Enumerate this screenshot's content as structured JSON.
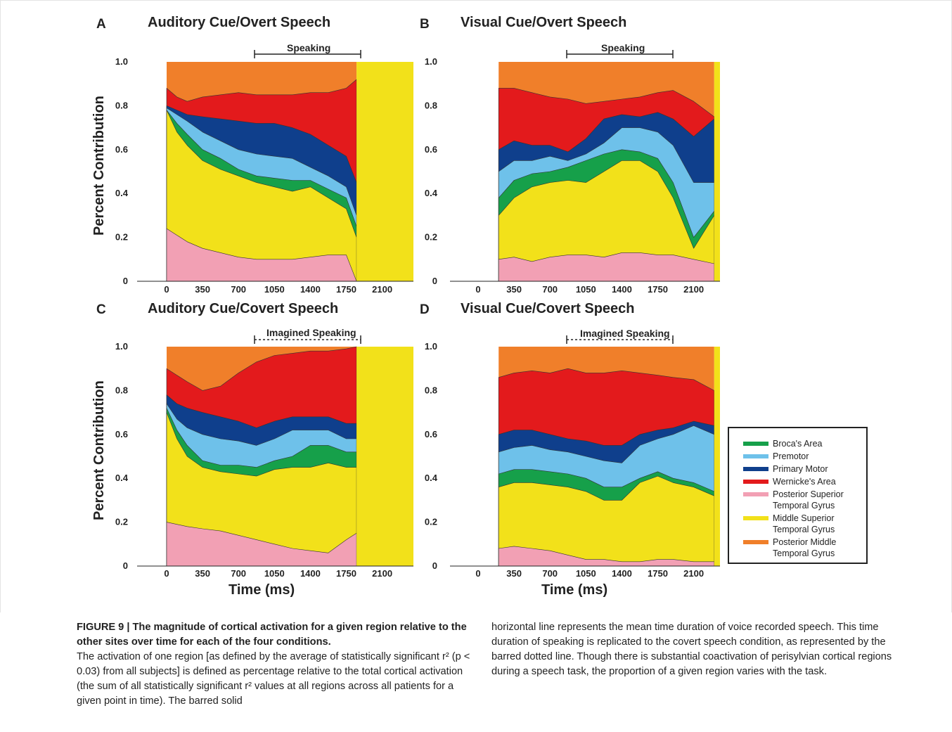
{
  "figure": {
    "panels": [
      {
        "letter": "A",
        "title": "Auditory Cue/Overt Speech",
        "span_label": "Speaking",
        "span_style": "solid"
      },
      {
        "letter": "B",
        "title": "Visual Cue/Overt Speech",
        "span_label": "Speaking",
        "span_style": "solid"
      },
      {
        "letter": "C",
        "title": "Auditory Cue/Covert Speech",
        "span_label": "Imagined Speaking",
        "span_style": "dotted"
      },
      {
        "letter": "D",
        "title": "Visual Cue/Covert Speech",
        "span_label": "Imagined Speaking",
        "span_style": "dotted"
      }
    ],
    "ylabel": "Percent Contribution",
    "xlabel": "Time (ms)",
    "y_ticks": [
      "0",
      "0.2",
      "0.4",
      "0.6",
      "0.8",
      "1.0"
    ],
    "x_ticks": [
      "0",
      "350",
      "700",
      "1050",
      "1400",
      "1750",
      "2100"
    ]
  },
  "legend": [
    {
      "label": "Broca's Area",
      "color": "#16a04a"
    },
    {
      "label": "Premotor",
      "color": "#6ec1ea"
    },
    {
      "label": "Primary Motor",
      "color": "#0f3f8c"
    },
    {
      "label": "Wernicke's Area",
      "color": "#e31a1c"
    },
    {
      "label": "Posterior Superior\nTemporal Gyrus",
      "color": "#f2a0b4"
    },
    {
      "label": "Middle Superior\nTemporal Gyrus",
      "color": "#f2e11a"
    },
    {
      "label": "Posterior Middle\nTemporal Gyrus",
      "color": "#f07f2a"
    }
  ],
  "caption": {
    "heading": "FIGURE 9 | The magnitude of cortical activation for a given region relative to the other sites over time for each of the four conditions.",
    "left_body": "The activation of one region [as defined by the average of statistically significant r² (p < 0.03) from all subjects] is defined as percentage relative to the total cortical activation (the sum of all statistically significant r² values at all regions across all patients for a given point in time). The barred solid",
    "right_body": "horizontal line represents the mean time duration of voice recorded speech. This time duration of speaking is replicated to the covert speech condition, as represented by the barred dotted line. Though there is substantial coactivation of perisylvian cortical regions during a speech task, the proportion of a given region varies with the task."
  },
  "chart_data": [
    {
      "type": "area",
      "title": "Auditory Cue/Overt Speech",
      "xlabel": "",
      "ylabel": "Percent Contribution",
      "ylim": [
        0,
        1
      ],
      "x": [
        0,
        100,
        200,
        350,
        525,
        700,
        875,
        1050,
        1225,
        1400,
        1575,
        1750,
        1850
      ],
      "boundaries": {
        "pink_top": [
          0.24,
          0.21,
          0.18,
          0.15,
          0.13,
          0.11,
          0.1,
          0.1,
          0.1,
          0.11,
          0.12,
          0.12,
          0.0
        ],
        "yellow_top": [
          0.78,
          0.68,
          0.62,
          0.55,
          0.51,
          0.48,
          0.45,
          0.43,
          0.41,
          0.43,
          0.38,
          0.33,
          0.2
        ],
        "green_top": [
          0.78,
          0.72,
          0.67,
          0.6,
          0.56,
          0.51,
          0.48,
          0.47,
          0.46,
          0.46,
          0.42,
          0.38,
          0.25
        ],
        "lblue_top": [
          0.79,
          0.76,
          0.73,
          0.68,
          0.64,
          0.6,
          0.58,
          0.57,
          0.56,
          0.52,
          0.48,
          0.43,
          0.3
        ],
        "dblue_top": [
          0.8,
          0.78,
          0.76,
          0.75,
          0.74,
          0.73,
          0.72,
          0.72,
          0.7,
          0.67,
          0.62,
          0.57,
          0.45
        ],
        "red_top": [
          0.88,
          0.84,
          0.82,
          0.84,
          0.85,
          0.86,
          0.85,
          0.85,
          0.85,
          0.86,
          0.86,
          0.88,
          0.92
        ]
      }
    },
    {
      "type": "area",
      "title": "Visual Cue/Overt Speech",
      "xlabel": "",
      "ylabel": "",
      "ylim": [
        0,
        1
      ],
      "x": [
        200,
        350,
        525,
        700,
        875,
        1050,
        1225,
        1400,
        1575,
        1750,
        1900,
        2100,
        2300
      ],
      "boundaries": {
        "pink_top": [
          0.1,
          0.11,
          0.09,
          0.11,
          0.12,
          0.12,
          0.11,
          0.13,
          0.13,
          0.12,
          0.12,
          0.1,
          0.08
        ],
        "yellow_top": [
          0.3,
          0.38,
          0.43,
          0.45,
          0.46,
          0.45,
          0.5,
          0.55,
          0.55,
          0.5,
          0.38,
          0.15,
          0.3
        ],
        "green_top": [
          0.38,
          0.46,
          0.49,
          0.5,
          0.52,
          0.55,
          0.58,
          0.6,
          0.59,
          0.56,
          0.45,
          0.2,
          0.32
        ],
        "lblue_top": [
          0.5,
          0.55,
          0.55,
          0.57,
          0.55,
          0.58,
          0.63,
          0.7,
          0.7,
          0.68,
          0.62,
          0.45,
          0.45
        ],
        "dblue_top": [
          0.6,
          0.64,
          0.62,
          0.62,
          0.59,
          0.65,
          0.74,
          0.76,
          0.75,
          0.77,
          0.74,
          0.66,
          0.74
        ],
        "red_top": [
          0.88,
          0.88,
          0.86,
          0.84,
          0.83,
          0.81,
          0.82,
          0.83,
          0.84,
          0.86,
          0.87,
          0.82,
          0.75
        ]
      }
    },
    {
      "type": "area",
      "title": "Auditory Cue/Covert Speech",
      "xlabel": "Time (ms)",
      "ylabel": "Percent Contribution",
      "ylim": [
        0,
        1
      ],
      "x": [
        0,
        100,
        200,
        350,
        525,
        700,
        875,
        1050,
        1225,
        1400,
        1575,
        1750,
        1850
      ],
      "boundaries": {
        "pink_top": [
          0.2,
          0.19,
          0.18,
          0.17,
          0.16,
          0.14,
          0.12,
          0.1,
          0.08,
          0.07,
          0.06,
          0.12,
          0.15
        ],
        "yellow_top": [
          0.7,
          0.58,
          0.5,
          0.45,
          0.43,
          0.42,
          0.41,
          0.44,
          0.45,
          0.45,
          0.47,
          0.45,
          0.45
        ],
        "green_top": [
          0.72,
          0.62,
          0.55,
          0.48,
          0.46,
          0.46,
          0.45,
          0.48,
          0.5,
          0.55,
          0.55,
          0.52,
          0.52
        ],
        "lblue_top": [
          0.74,
          0.67,
          0.63,
          0.6,
          0.58,
          0.57,
          0.55,
          0.58,
          0.62,
          0.62,
          0.62,
          0.58,
          0.58
        ],
        "dblue_top": [
          0.78,
          0.74,
          0.72,
          0.7,
          0.68,
          0.66,
          0.63,
          0.66,
          0.68,
          0.68,
          0.68,
          0.65,
          0.65
        ],
        "red_top": [
          0.9,
          0.87,
          0.84,
          0.8,
          0.82,
          0.88,
          0.93,
          0.96,
          0.97,
          0.98,
          0.98,
          0.99,
          1.0
        ]
      }
    },
    {
      "type": "area",
      "title": "Visual Cue/Covert Speech",
      "xlabel": "Time (ms)",
      "ylabel": "",
      "ylim": [
        0,
        1
      ],
      "x": [
        200,
        350,
        525,
        700,
        875,
        1050,
        1225,
        1400,
        1575,
        1750,
        1900,
        2100,
        2300
      ],
      "boundaries": {
        "pink_top": [
          0.08,
          0.09,
          0.08,
          0.07,
          0.05,
          0.03,
          0.03,
          0.02,
          0.02,
          0.03,
          0.03,
          0.02,
          0.02
        ],
        "yellow_top": [
          0.36,
          0.38,
          0.38,
          0.37,
          0.36,
          0.34,
          0.3,
          0.3,
          0.38,
          0.41,
          0.38,
          0.36,
          0.32
        ],
        "green_top": [
          0.42,
          0.44,
          0.44,
          0.43,
          0.42,
          0.4,
          0.36,
          0.36,
          0.4,
          0.43,
          0.4,
          0.38,
          0.34
        ],
        "lblue_top": [
          0.52,
          0.54,
          0.55,
          0.53,
          0.52,
          0.5,
          0.48,
          0.47,
          0.55,
          0.58,
          0.6,
          0.64,
          0.6
        ],
        "dblue_top": [
          0.6,
          0.62,
          0.62,
          0.6,
          0.58,
          0.57,
          0.55,
          0.55,
          0.6,
          0.62,
          0.63,
          0.66,
          0.64
        ],
        "red_top": [
          0.86,
          0.88,
          0.89,
          0.88,
          0.9,
          0.88,
          0.88,
          0.89,
          0.88,
          0.87,
          0.86,
          0.85,
          0.8
        ]
      }
    }
  ]
}
